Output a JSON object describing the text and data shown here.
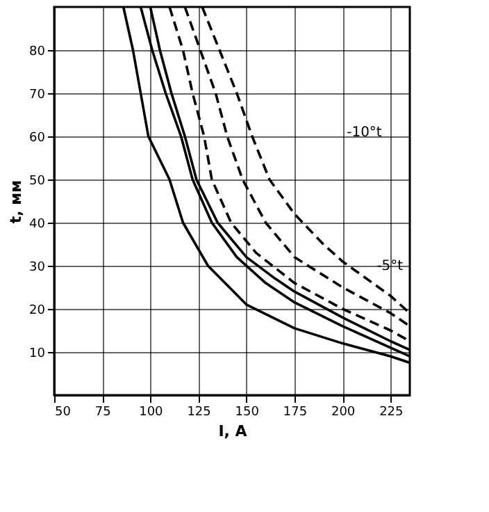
{
  "chart_data": {
    "type": "line",
    "xlabel": "I, А",
    "ylabel": "t, мм",
    "xlim": [
      50,
      235
    ],
    "ylim": [
      0,
      90
    ],
    "xticks": [
      50,
      75,
      100,
      125,
      150,
      175,
      200,
      225
    ],
    "yticks": [
      10,
      20,
      30,
      40,
      50,
      60,
      70,
      80
    ],
    "grid": true,
    "marker": "none",
    "series": [
      {
        "color": "#000000",
        "line_style": "solid",
        "x": [
          86,
          91,
          95,
          99,
          110,
          117,
          130,
          150,
          175,
          200,
          225,
          235
        ],
        "values": [
          90,
          80,
          70,
          60,
          50,
          40,
          30,
          21,
          15.5,
          12,
          9,
          7.5
        ]
      },
      {
        "color": "#000000",
        "line_style": "solid",
        "x": [
          95,
          101,
          108,
          116,
          122,
          132,
          145,
          160,
          175,
          200,
          225,
          235
        ],
        "values": [
          90,
          80,
          70,
          60,
          50,
          40,
          32,
          26,
          21.5,
          16,
          11,
          9
        ]
      },
      {
        "color": "#000000",
        "line_style": "solid",
        "x": [
          100,
          105,
          111,
          118,
          124,
          135,
          150,
          165,
          175,
          200,
          225,
          235
        ],
        "values": [
          90,
          80,
          70,
          60,
          50,
          40,
          32,
          27,
          24,
          18,
          12.5,
          10.5
        ]
      },
      {
        "color": "#000000",
        "line_style": "dashed",
        "x": [
          110,
          117,
          122,
          128,
          132,
          142,
          155,
          175,
          200,
          225,
          235
        ],
        "values": [
          90,
          80,
          70,
          60,
          50,
          40,
          33,
          26,
          20,
          15,
          12.5
        ]
      },
      {
        "color": "#000000",
        "line_style": "dashed",
        "x": [
          118,
          126,
          134,
          140,
          148,
          160,
          175,
          200,
          225,
          235
        ],
        "values": [
          90,
          80,
          70,
          60,
          50,
          40,
          32,
          25,
          19,
          16
        ]
      },
      {
        "color": "#000000",
        "line_style": "dashed",
        "x": [
          127,
          136,
          145,
          153,
          162,
          175,
          190,
          200,
          225,
          235
        ],
        "values": [
          90,
          80,
          70,
          60,
          50,
          42,
          35,
          31,
          23,
          19
        ]
      }
    ],
    "annotations": [
      "-10°t",
      "-5°t"
    ]
  }
}
